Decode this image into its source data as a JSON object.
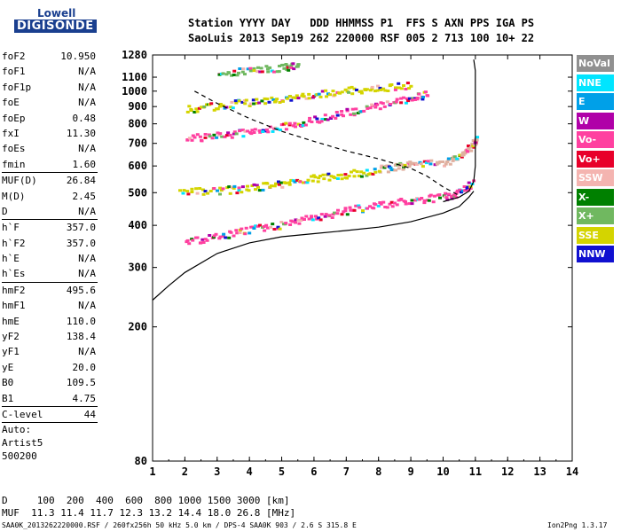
{
  "logo": {
    "top": "Lowell",
    "bottom": "DIGISONDE"
  },
  "header": {
    "line1": "Station YYYY DAY   DDD HHMMSS P1  FFS S AXN PPS IGA PS",
    "line2": "SaoLuis 2013 Sep19 262 220000 RSF 005 2 713 100 10+ 22"
  },
  "params": {
    "group1": [
      {
        "label": "foF2",
        "value": "10.950"
      },
      {
        "label": "foF1",
        "value": "N/A"
      },
      {
        "label": "foF1p",
        "value": "N/A"
      },
      {
        "label": "foE",
        "value": "N/A"
      },
      {
        "label": "foEp",
        "value": "0.48"
      },
      {
        "label": "fxI",
        "value": "11.30"
      },
      {
        "label": "foEs",
        "value": "N/A"
      },
      {
        "label": "fmin",
        "value": "1.60"
      }
    ],
    "group2": [
      {
        "label": "MUF(D)",
        "value": "26.84"
      },
      {
        "label": "M(D)",
        "value": "2.45"
      },
      {
        "label": "D",
        "value": "N/A"
      }
    ],
    "group3": [
      {
        "label": "h`F",
        "value": "357.0"
      },
      {
        "label": "h`F2",
        "value": "357.0"
      },
      {
        "label": "h`E",
        "value": "N/A"
      },
      {
        "label": "h`Es",
        "value": "N/A"
      }
    ],
    "group4": [
      {
        "label": "hmF2",
        "value": "495.6"
      },
      {
        "label": "hmF1",
        "value": "N/A"
      },
      {
        "label": "hmE",
        "value": "110.0"
      },
      {
        "label": "yF2",
        "value": "138.4"
      },
      {
        "label": "yF1",
        "value": "N/A"
      },
      {
        "label": "yE",
        "value": "20.0"
      },
      {
        "label": "B0",
        "value": "109.5"
      },
      {
        "label": "B1",
        "value": "4.75"
      }
    ],
    "clevel": {
      "label": "C-level",
      "value": "44"
    },
    "auto": [
      "Auto:",
      "Artist5",
      "500200"
    ]
  },
  "legend": [
    {
      "label": "NoVal",
      "color": "#909090"
    },
    {
      "label": "NNE",
      "color": "#00e5ff"
    },
    {
      "label": "E",
      "color": "#00a0e8"
    },
    {
      "label": "W",
      "color": "#b000a8"
    },
    {
      "label": "Vo-",
      "color": "#ff40a0"
    },
    {
      "label": "Vo+",
      "color": "#e8002a"
    },
    {
      "label": "SSW",
      "color": "#f4b4b0"
    },
    {
      "label": "X-",
      "color": "#008000"
    },
    {
      "label": "X+",
      "color": "#70b860"
    },
    {
      "label": "SSE",
      "color": "#d4d400"
    },
    {
      "label": "NNW",
      "color": "#1010d0"
    }
  ],
  "muf_table": {
    "line1": "D     100  200  400  600  800 1000 1500 3000 [km]",
    "line2": "MUF  11.3 11.4 11.7 12.3 13.2 14.4 18.0 26.8 [MHz]"
  },
  "footer": "SAA0K_2013262220000.RSF / 260fx256h 50 kHz 5.0 km / DPS-4 SAA0K 903 / 2.6 S 315.8 E",
  "version": "Ion2Png 1.3.17",
  "chart_data": {
    "type": "scatter",
    "xlim": [
      1,
      14
    ],
    "ylim": [
      80,
      1280
    ],
    "xticks": [
      1,
      2,
      3,
      4,
      5,
      6,
      7,
      8,
      9,
      10,
      11,
      12,
      13,
      14
    ],
    "yticks": [
      80,
      200,
      300,
      400,
      500,
      600,
      700,
      800,
      900,
      1000,
      1100,
      1280
    ],
    "y_scale": "log",
    "grid": false,
    "ionogram_traces": [
      {
        "name": "F2-1",
        "color": "#ff40a0",
        "points": [
          [
            2.0,
            362
          ],
          [
            3.0,
            372
          ],
          [
            4.0,
            390
          ],
          [
            5.0,
            405
          ],
          [
            6.0,
            425
          ],
          [
            7.0,
            445
          ],
          [
            8.0,
            462
          ],
          [
            9.0,
            476
          ],
          [
            10.0,
            490
          ],
          [
            10.5,
            505
          ],
          [
            10.9,
            540
          ]
        ]
      },
      {
        "name": "F2-2",
        "color": "#ff40a0",
        "points": [
          [
            2.0,
            728
          ],
          [
            3.0,
            742
          ],
          [
            4.0,
            762
          ],
          [
            5.0,
            790
          ],
          [
            6.0,
            830
          ],
          [
            7.0,
            870
          ],
          [
            8.0,
            915
          ],
          [
            9.0,
            960
          ],
          [
            9.5,
            985
          ]
        ]
      },
      {
        "name": "F2-3",
        "color": "#e0b0a0",
        "points": [
          [
            8.0,
            590
          ],
          [
            8.5,
            600
          ],
          [
            9.0,
            610
          ],
          [
            10.0,
            620
          ],
          [
            10.5,
            640
          ],
          [
            10.9,
            700
          ],
          [
            11.0,
            730
          ]
        ]
      },
      {
        "name": "F2-4",
        "color": "#d4d400",
        "points": [
          [
            1.8,
            505
          ],
          [
            3.0,
            510
          ],
          [
            4.0,
            520
          ],
          [
            5.0,
            535
          ],
          [
            6.0,
            555
          ],
          [
            7.0,
            570
          ],
          [
            8.0,
            585
          ]
        ]
      },
      {
        "name": "F2-5",
        "color": "#d4d400",
        "points": [
          [
            2.0,
            890
          ],
          [
            3.0,
            910
          ],
          [
            4.0,
            935
          ],
          [
            5.0,
            960
          ],
          [
            6.0,
            985
          ],
          [
            7.0,
            1010
          ],
          [
            8.0,
            1030
          ],
          [
            9.0,
            1050
          ]
        ]
      },
      {
        "name": "F2-6",
        "color": "#70b860",
        "points": [
          [
            3.0,
            1135
          ],
          [
            4.0,
            1160
          ],
          [
            5.0,
            1185
          ],
          [
            5.5,
            1200
          ]
        ]
      }
    ],
    "profile_curve": [
      [
        1.0,
        240
      ],
      [
        1.5,
        265
      ],
      [
        2.0,
        290
      ],
      [
        3.0,
        330
      ],
      [
        4.0,
        355
      ],
      [
        5.0,
        370
      ],
      [
        6.0,
        378
      ],
      [
        7.0,
        386
      ],
      [
        8.0,
        395
      ],
      [
        9.0,
        410
      ],
      [
        10.0,
        435
      ],
      [
        10.5,
        455
      ],
      [
        10.8,
        485
      ],
      [
        10.95,
        505
      ]
    ],
    "upper_curve": [
      [
        10.0,
        470
      ],
      [
        10.5,
        485
      ],
      [
        10.8,
        505
      ],
      [
        10.95,
        540
      ],
      [
        11.0,
        600
      ],
      [
        11.0,
        700
      ],
      [
        11.0,
        800
      ],
      [
        11.0,
        1000
      ],
      [
        11.0,
        1150
      ],
      [
        10.95,
        1240
      ]
    ],
    "dashed_curve": [
      [
        2.3,
        1000
      ],
      [
        3.0,
        920
      ],
      [
        4.0,
        830
      ],
      [
        5.0,
        760
      ],
      [
        6.0,
        710
      ],
      [
        7.0,
        665
      ],
      [
        8.0,
        630
      ],
      [
        9.0,
        590
      ],
      [
        9.5,
        560
      ],
      [
        10.0,
        520
      ],
      [
        10.5,
        490
      ]
    ]
  }
}
